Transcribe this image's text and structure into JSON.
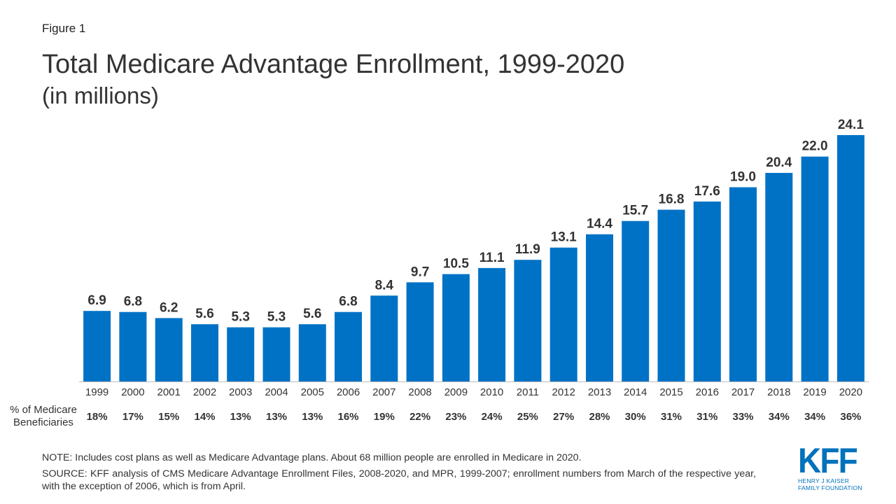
{
  "figure_label": "Figure 1",
  "chart_data": {
    "type": "bar",
    "title": "Total Medicare Advantage Enrollment, 1999-2020",
    "subtitle": "(in millions)",
    "categories": [
      "1999",
      "2000",
      "2001",
      "2002",
      "2003",
      "2004",
      "2005",
      "2006",
      "2007",
      "2008",
      "2009",
      "2010",
      "2011",
      "2012",
      "2013",
      "2014",
      "2015",
      "2016",
      "2017",
      "2018",
      "2019",
      "2020"
    ],
    "values": [
      6.9,
      6.8,
      6.2,
      5.6,
      5.3,
      5.3,
      5.6,
      6.8,
      8.4,
      9.7,
      10.5,
      11.1,
      11.9,
      13.1,
      14.4,
      15.7,
      16.8,
      17.6,
      19.0,
      20.4,
      22.0,
      24.1
    ],
    "value_labels": [
      "6.9",
      "6.8",
      "6.2",
      "5.6",
      "5.3",
      "5.3",
      "5.6",
      "6.8",
      "8.4",
      "9.7",
      "10.5",
      "11.1",
      "11.9",
      "13.1",
      "14.4",
      "15.7",
      "16.8",
      "17.6",
      "19.0",
      "20.4",
      "22.0",
      "24.1"
    ],
    "bar_color": "#0072c6",
    "ylim": [
      0,
      24.1
    ],
    "grid": false,
    "row_label": "% of Medicare Beneficiaries",
    "row_values": [
      "18%",
      "17%",
      "15%",
      "14%",
      "13%",
      "13%",
      "13%",
      "16%",
      "19%",
      "22%",
      "23%",
      "24%",
      "25%",
      "27%",
      "28%",
      "30%",
      "31%",
      "31%",
      "33%",
      "34%",
      "34%",
      "36%"
    ]
  },
  "note": "NOTE: Includes cost plans as well as Medicare Advantage plans. About 68 million people are enrolled in Medicare in 2020.",
  "source": "SOURCE: KFF analysis of CMS Medicare Advantage Enrollment Files, 2008-2020, and MPR, 1999-2007; enrollment numbers from March of the respective year, with the exception of 2006, which is from April.",
  "logo": {
    "mark": "KFF",
    "line1": "HENRY J KAISER",
    "line2": "FAMILY FOUNDATION",
    "color": "#0072bc"
  }
}
